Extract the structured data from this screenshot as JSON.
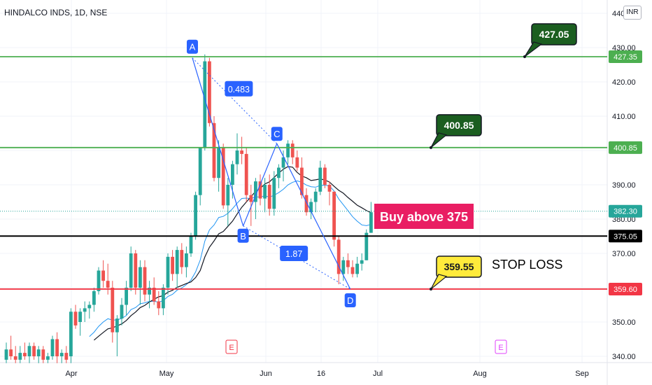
{
  "header": {
    "symbol_title": "HINDALCO INDS, 1D, NSE",
    "currency": "INR"
  },
  "colors": {
    "up": "#26a69a",
    "down": "#ef5350",
    "pattern": "#2962ff",
    "green_line": "#4caf50",
    "red_line": "#f23645",
    "ma_long": "#131722",
    "ma_short": "#2196f3"
  },
  "chart_data": {
    "type": "candlestick",
    "title": "HINDALCO INDS, 1D, NSE",
    "ylim": [
      338,
      438
    ],
    "x_ticks": [
      "Apr",
      "May",
      "Jun",
      "16",
      "Jul",
      "Aug",
      "Sep"
    ],
    "y_ticks": [
      "340.00",
      "350.00",
      "360.00",
      "370.00",
      "380.00",
      "390.00",
      "400.00",
      "410.00",
      "420.00",
      "430.00",
      "440"
    ],
    "candles": [
      {
        "o": 339,
        "h": 344,
        "l": 338,
        "c": 342
      },
      {
        "o": 342,
        "h": 346,
        "l": 339,
        "c": 340
      },
      {
        "o": 340,
        "h": 343,
        "l": 338,
        "c": 339
      },
      {
        "o": 339,
        "h": 343,
        "l": 338,
        "c": 341
      },
      {
        "o": 341,
        "h": 344,
        "l": 339,
        "c": 340
      },
      {
        "o": 340,
        "h": 344,
        "l": 338,
        "c": 343
      },
      {
        "o": 343,
        "h": 344,
        "l": 339,
        "c": 340
      },
      {
        "o": 340,
        "h": 343,
        "l": 338,
        "c": 342
      },
      {
        "o": 342,
        "h": 343,
        "l": 338,
        "c": 339
      },
      {
        "o": 339,
        "h": 341,
        "l": 338,
        "c": 340
      },
      {
        "o": 340,
        "h": 346,
        "l": 339,
        "c": 345
      },
      {
        "o": 345,
        "h": 347,
        "l": 338,
        "c": 340
      },
      {
        "o": 340,
        "h": 342,
        "l": 338,
        "c": 341
      },
      {
        "o": 341,
        "h": 343,
        "l": 338,
        "c": 339
      },
      {
        "o": 340,
        "h": 354,
        "l": 338,
        "c": 353
      },
      {
        "o": 353,
        "h": 355,
        "l": 348,
        "c": 349
      },
      {
        "o": 350,
        "h": 354,
        "l": 346,
        "c": 353
      },
      {
        "o": 353,
        "h": 356,
        "l": 350,
        "c": 354
      },
      {
        "o": 354,
        "h": 356,
        "l": 351,
        "c": 355
      },
      {
        "o": 355,
        "h": 360,
        "l": 353,
        "c": 359
      },
      {
        "o": 359,
        "h": 366,
        "l": 358,
        "c": 365
      },
      {
        "o": 365,
        "h": 368,
        "l": 360,
        "c": 362
      },
      {
        "o": 362,
        "h": 367,
        "l": 358,
        "c": 360
      },
      {
        "o": 360,
        "h": 362,
        "l": 344,
        "c": 347
      },
      {
        "o": 347,
        "h": 352,
        "l": 340,
        "c": 351
      },
      {
        "o": 351,
        "h": 357,
        "l": 349,
        "c": 355
      },
      {
        "o": 355,
        "h": 362,
        "l": 352,
        "c": 360
      },
      {
        "o": 360,
        "h": 372,
        "l": 359,
        "c": 370
      },
      {
        "o": 370,
        "h": 371,
        "l": 358,
        "c": 360
      },
      {
        "o": 360,
        "h": 368,
        "l": 355,
        "c": 366
      },
      {
        "o": 366,
        "h": 368,
        "l": 356,
        "c": 358
      },
      {
        "o": 358,
        "h": 362,
        "l": 354,
        "c": 360
      },
      {
        "o": 360,
        "h": 363,
        "l": 355,
        "c": 356
      },
      {
        "o": 356,
        "h": 359,
        "l": 352,
        "c": 354
      },
      {
        "o": 354,
        "h": 361,
        "l": 352,
        "c": 360
      },
      {
        "o": 360,
        "h": 370,
        "l": 358,
        "c": 369
      },
      {
        "o": 369,
        "h": 371,
        "l": 362,
        "c": 364
      },
      {
        "o": 364,
        "h": 372,
        "l": 360,
        "c": 371
      },
      {
        "o": 371,
        "h": 373,
        "l": 364,
        "c": 366
      },
      {
        "o": 366,
        "h": 372,
        "l": 363,
        "c": 370
      },
      {
        "o": 370,
        "h": 376,
        "l": 369,
        "c": 375
      },
      {
        "o": 375,
        "h": 388,
        "l": 374,
        "c": 387
      },
      {
        "o": 387,
        "h": 401,
        "l": 384,
        "c": 401
      },
      {
        "o": 401,
        "h": 428,
        "l": 400,
        "c": 426
      },
      {
        "o": 426,
        "h": 427,
        "l": 407,
        "c": 408
      },
      {
        "o": 408,
        "h": 410,
        "l": 391,
        "c": 392
      },
      {
        "o": 392,
        "h": 403,
        "l": 388,
        "c": 401
      },
      {
        "o": 401,
        "h": 402,
        "l": 383,
        "c": 384
      },
      {
        "o": 384,
        "h": 392,
        "l": 378,
        "c": 390
      },
      {
        "o": 390,
        "h": 397,
        "l": 386,
        "c": 396
      },
      {
        "o": 396,
        "h": 405,
        "l": 393,
        "c": 400
      },
      {
        "o": 400,
        "h": 404,
        "l": 396,
        "c": 399
      },
      {
        "o": 399,
        "h": 401,
        "l": 385,
        "c": 387
      },
      {
        "o": 387,
        "h": 390,
        "l": 378,
        "c": 385
      },
      {
        "o": 385,
        "h": 392,
        "l": 380,
        "c": 391
      },
      {
        "o": 391,
        "h": 393,
        "l": 384,
        "c": 386
      },
      {
        "o": 386,
        "h": 392,
        "l": 382,
        "c": 390
      },
      {
        "o": 390,
        "h": 393,
        "l": 381,
        "c": 383
      },
      {
        "o": 383,
        "h": 394,
        "l": 381,
        "c": 392
      },
      {
        "o": 392,
        "h": 396,
        "l": 389,
        "c": 395
      },
      {
        "o": 395,
        "h": 400,
        "l": 391,
        "c": 398
      },
      {
        "o": 398,
        "h": 403,
        "l": 396,
        "c": 402
      },
      {
        "o": 402,
        "h": 403,
        "l": 396,
        "c": 398
      },
      {
        "o": 398,
        "h": 400,
        "l": 394,
        "c": 395
      },
      {
        "o": 395,
        "h": 398,
        "l": 386,
        "c": 387
      },
      {
        "o": 387,
        "h": 389,
        "l": 381,
        "c": 382
      },
      {
        "o": 382,
        "h": 386,
        "l": 380,
        "c": 385
      },
      {
        "o": 385,
        "h": 389,
        "l": 382,
        "c": 388
      },
      {
        "o": 388,
        "h": 397,
        "l": 387,
        "c": 395
      },
      {
        "o": 395,
        "h": 396,
        "l": 389,
        "c": 390
      },
      {
        "o": 390,
        "h": 391,
        "l": 384,
        "c": 388
      },
      {
        "o": 388,
        "h": 388,
        "l": 372,
        "c": 374
      },
      {
        "o": 374,
        "h": 375,
        "l": 361,
        "c": 364
      },
      {
        "o": 364,
        "h": 369,
        "l": 362,
        "c": 368
      },
      {
        "o": 368,
        "h": 370,
        "l": 364,
        "c": 366
      },
      {
        "o": 366,
        "h": 368,
        "l": 363,
        "c": 364
      },
      {
        "o": 364,
        "h": 369,
        "l": 363,
        "c": 367
      },
      {
        "o": 367,
        "h": 370,
        "l": 365,
        "c": 368
      },
      {
        "o": 368,
        "h": 377,
        "l": 368,
        "c": 376
      },
      {
        "o": 376,
        "h": 385,
        "l": 376,
        "c": 382
      }
    ],
    "horizontal_levels": [
      427.35,
      400.85,
      375.05,
      359.6
    ],
    "price_labels": [
      "427.35",
      "400.85",
      "382.30",
      "375.05",
      "359.60"
    ],
    "current_price": 382.3,
    "pattern_points": [
      {
        "label": "A",
        "value": 427
      },
      {
        "label": "B",
        "value": 378
      },
      {
        "label": "C",
        "value": 402
      },
      {
        "label": "D",
        "value": 359.6
      }
    ],
    "pattern_ratios": [
      "0.483",
      "1.87"
    ],
    "callouts": [
      "427.05",
      "400.85",
      "359.55"
    ],
    "annotations": {
      "buy": "Buy above 375",
      "stop": "STOP LOSS"
    },
    "earnings_markers": [
      "E",
      "E"
    ]
  }
}
